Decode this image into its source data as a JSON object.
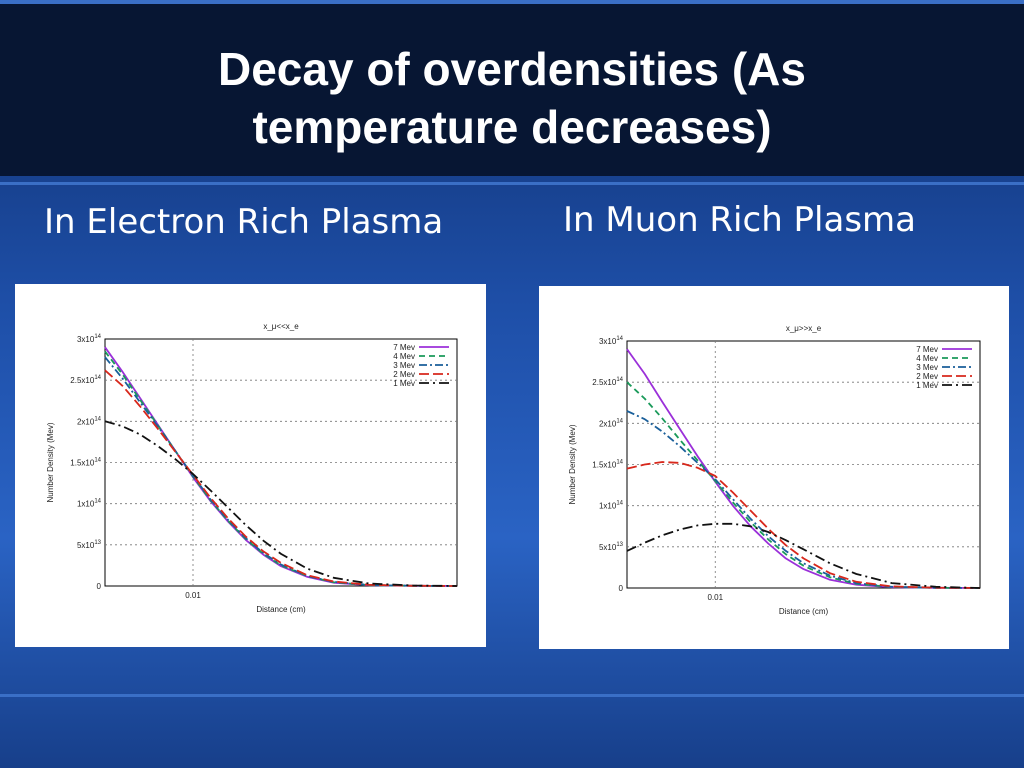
{
  "slide": {
    "title": "Decay of overdensities (As\ntemperature decreases)",
    "left_heading": "In Electron Rich Plasma",
    "right_heading": "In Muon Rich Plasma"
  },
  "colors": {
    "7 Mev": "#9b30d9",
    "4 Mev": "#1a9a5a",
    "3 Mev": "#1a5f9a",
    "2 Mev": "#d8281c",
    "1 Mev": "#111111"
  },
  "chart_data": [
    {
      "type": "line",
      "title": "x_μ<<x_e",
      "xlabel": "Distance (cm)",
      "ylabel": "Number Density (Mev)",
      "xlim": [
        0,
        0.04
      ],
      "ylim": [
        0,
        300000000000000.0
      ],
      "xticks": [
        {
          "value": 0.01,
          "label": "0.01"
        }
      ],
      "yticks": [
        {
          "value": 0,
          "label": "0"
        },
        {
          "value": 50000000000000.0,
          "label": "5x10^13"
        },
        {
          "value": 100000000000000.0,
          "label": "1x10^14"
        },
        {
          "value": 150000000000000.0,
          "label": "1.5x10^14"
        },
        {
          "value": 200000000000000.0,
          "label": "2x10^14"
        },
        {
          "value": 250000000000000.0,
          "label": "2.5x10^14"
        },
        {
          "value": 300000000000000.0,
          "label": "3x10^14"
        }
      ],
      "legend": "top-right",
      "grid": true,
      "series": [
        {
          "name": "7 Mev",
          "dash": "solid",
          "x": [
            0,
            0.002,
            0.004,
            0.006,
            0.008,
            0.01,
            0.012,
            0.014,
            0.016,
            0.018,
            0.02,
            0.023,
            0.026,
            0.03,
            0.035,
            0.04
          ],
          "y": [
            290000000000000.0,
            260000000000000.0,
            228000000000000.0,
            196000000000000.0,
            164000000000000.0,
            132000000000000.0,
            103000000000000.0,
            78000000000000.0,
            56000000000000.0,
            38000000000000.0,
            24000000000000.0,
            11000000000000.0,
            4000000000000.0,
            1000000000000.0,
            200000000000.0,
            0
          ]
        },
        {
          "name": "4 Mev",
          "dash": "dashed",
          "x": [
            0,
            0.002,
            0.004,
            0.006,
            0.008,
            0.01,
            0.012,
            0.014,
            0.016,
            0.018,
            0.02,
            0.023,
            0.026,
            0.03,
            0.035,
            0.04
          ],
          "y": [
            285000000000000.0,
            257000000000000.0,
            226000000000000.0,
            195000000000000.0,
            164000000000000.0,
            133000000000000.0,
            104000000000000.0,
            79000000000000.0,
            57000000000000.0,
            39000000000000.0,
            25000000000000.0,
            12000000000000.0,
            4500000000000.0,
            1000000000000.0,
            200000000000.0,
            0
          ]
        },
        {
          "name": "3 Mev",
          "dash": "dashdot",
          "x": [
            0,
            0.002,
            0.004,
            0.006,
            0.008,
            0.01,
            0.012,
            0.014,
            0.016,
            0.018,
            0.02,
            0.023,
            0.026,
            0.03,
            0.035,
            0.04
          ],
          "y": [
            278000000000000.0,
            252000000000000.0,
            223000000000000.0,
            194000000000000.0,
            164000000000000.0,
            134000000000000.0,
            105000000000000.0,
            80000000000000.0,
            58000000000000.0,
            40000000000000.0,
            26000000000000.0,
            12000000000000.0,
            5000000000000.0,
            1200000000000.0,
            200000000000.0,
            0
          ]
        },
        {
          "name": "2 Mev",
          "dash": "longdash",
          "x": [
            0,
            0.002,
            0.004,
            0.006,
            0.008,
            0.01,
            0.012,
            0.014,
            0.016,
            0.018,
            0.02,
            0.023,
            0.026,
            0.03,
            0.035,
            0.04
          ],
          "y": [
            262000000000000.0,
            243000000000000.0,
            218000000000000.0,
            191000000000000.0,
            163000000000000.0,
            135000000000000.0,
            107000000000000.0,
            82000000000000.0,
            60000000000000.0,
            42000000000000.0,
            28000000000000.0,
            13000000000000.0,
            5500000000000.0,
            1400000000000.0,
            300000000000.0,
            0
          ]
        },
        {
          "name": "1 Mev",
          "dash": "dashdot2",
          "x": [
            0,
            0.002,
            0.004,
            0.006,
            0.008,
            0.01,
            0.012,
            0.014,
            0.016,
            0.018,
            0.02,
            0.023,
            0.026,
            0.03,
            0.035,
            0.04
          ],
          "y": [
            200000000000000.0,
            194000000000000.0,
            184000000000000.0,
            170000000000000.0,
            154000000000000.0,
            136000000000000.0,
            116000000000000.0,
            95000000000000.0,
            74000000000000.0,
            55000000000000.0,
            39000000000000.0,
            21000000000000.0,
            10000000000000.0,
            3000000000000.0,
            600000000000.0,
            0
          ]
        }
      ]
    },
    {
      "type": "line",
      "title": "x_μ>>x_e",
      "xlabel": "Distance (cm)",
      "ylabel": "Number Density (Mev)",
      "xlim": [
        0,
        0.04
      ],
      "ylim": [
        0,
        300000000000000.0
      ],
      "xticks": [
        {
          "value": 0.01,
          "label": "0.01"
        }
      ],
      "yticks": [
        {
          "value": 0,
          "label": "0"
        },
        {
          "value": 50000000000000.0,
          "label": "5x10^13"
        },
        {
          "value": 100000000000000.0,
          "label": "1x10^14"
        },
        {
          "value": 150000000000000.0,
          "label": "1.5x10^14"
        },
        {
          "value": 200000000000000.0,
          "label": "2x10^14"
        },
        {
          "value": 250000000000000.0,
          "label": "2.5x10^14"
        },
        {
          "value": 300000000000000.0,
          "label": "3x10^14"
        }
      ],
      "legend": "top-right",
      "grid": true,
      "series": [
        {
          "name": "7 Mev",
          "dash": "solid",
          "x": [
            0,
            0.002,
            0.004,
            0.006,
            0.008,
            0.01,
            0.012,
            0.014,
            0.016,
            0.018,
            0.02,
            0.023,
            0.026,
            0.03,
            0.035,
            0.04
          ],
          "y": [
            290000000000000.0,
            260000000000000.0,
            226000000000000.0,
            193000000000000.0,
            160000000000000.0,
            129000000000000.0,
            100000000000000.0,
            75000000000000.0,
            54000000000000.0,
            36000000000000.0,
            23000000000000.0,
            10000000000000.0,
            4000000000000.0,
            1000000000000.0,
            200000000000.0,
            0
          ]
        },
        {
          "name": "4 Mev",
          "dash": "dashed",
          "x": [
            0,
            0.002,
            0.004,
            0.006,
            0.008,
            0.01,
            0.012,
            0.014,
            0.016,
            0.018,
            0.02,
            0.023,
            0.026,
            0.03,
            0.035,
            0.04
          ],
          "y": [
            250000000000000.0,
            230000000000000.0,
            206000000000000.0,
            180000000000000.0,
            155000000000000.0,
            130000000000000.0,
            104000000000000.0,
            80000000000000.0,
            59000000000000.0,
            41000000000000.0,
            27000000000000.0,
            13000000000000.0,
            5000000000000.0,
            1200000000000.0,
            200000000000.0,
            0
          ]
        },
        {
          "name": "3 Mev",
          "dash": "dashdot",
          "x": [
            0,
            0.002,
            0.004,
            0.006,
            0.008,
            0.01,
            0.012,
            0.014,
            0.016,
            0.018,
            0.02,
            0.023,
            0.026,
            0.03,
            0.035,
            0.04
          ],
          "y": [
            215000000000000.0,
            205000000000000.0,
            190000000000000.0,
            172000000000000.0,
            152000000000000.0,
            132000000000000.0,
            108000000000000.0,
            84000000000000.0,
            63000000000000.0,
            45000000000000.0,
            30000000000000.0,
            15000000000000.0,
            6000000000000.0,
            1500000000000.0,
            300000000000.0,
            0
          ]
        },
        {
          "name": "2 Mev",
          "dash": "longdash",
          "x": [
            0,
            0.002,
            0.004,
            0.006,
            0.008,
            0.01,
            0.012,
            0.014,
            0.016,
            0.018,
            0.02,
            0.023,
            0.026,
            0.03,
            0.035,
            0.04
          ],
          "y": [
            145000000000000.0,
            150000000000000.0,
            153000000000000.0,
            152000000000000.0,
            146000000000000.0,
            136000000000000.0,
            116000000000000.0,
            94000000000000.0,
            72000000000000.0,
            52000000000000.0,
            36000000000000.0,
            18000000000000.0,
            7500000000000.0,
            2000000000000.0,
            400000000000.0,
            0
          ]
        },
        {
          "name": "1 Mev",
          "dash": "dashdot2",
          "x": [
            0,
            0.002,
            0.004,
            0.006,
            0.008,
            0.01,
            0.012,
            0.014,
            0.016,
            0.018,
            0.02,
            0.023,
            0.026,
            0.03,
            0.035,
            0.04
          ],
          "y": [
            45000000000000.0,
            55000000000000.0,
            64000000000000.0,
            71000000000000.0,
            76000000000000.0,
            78000000000000.0,
            78000000000000.0,
            75000000000000.0,
            68000000000000.0,
            58000000000000.0,
            47000000000000.0,
            30000000000000.0,
            17000000000000.0,
            6000000000000.0,
            1500000000000.0,
            0
          ]
        }
      ]
    }
  ]
}
